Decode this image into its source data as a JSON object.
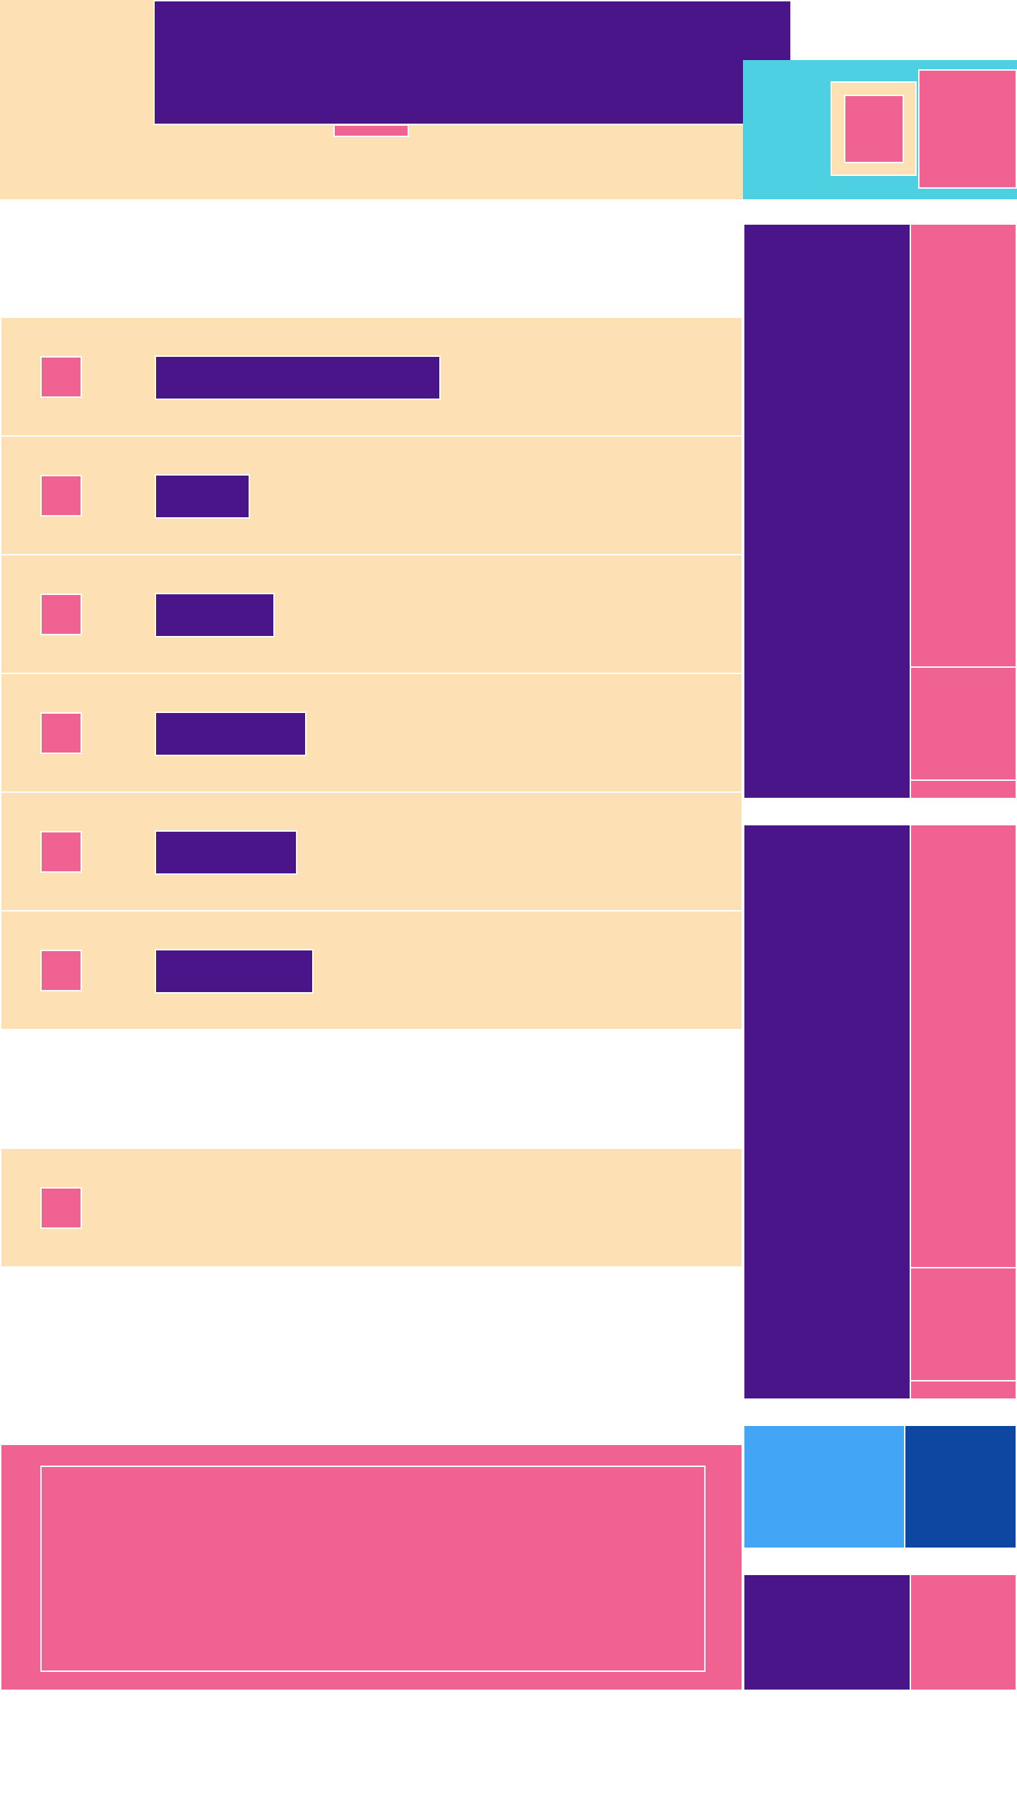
{
  "colors": {
    "peach": "#fde0b3",
    "purple": "#4b158a",
    "pink": "#f06292",
    "cyan": "#4dd0e1",
    "light_blue": "#42a5f5",
    "dark_blue": "#0d47a1",
    "divider": "#ffffff"
  },
  "header": {
    "title_bar": "",
    "tab_indicator": "",
    "profile_badge": "",
    "profile_icon": "checkbox-icon",
    "menu_panel": ""
  },
  "list": {
    "items": [
      {
        "icon": "checkbox-icon",
        "label": ""
      },
      {
        "icon": "checkbox-icon",
        "label": ""
      },
      {
        "icon": "checkbox-icon",
        "label": ""
      },
      {
        "icon": "checkbox-icon",
        "label": ""
      },
      {
        "icon": "checkbox-icon",
        "label": ""
      },
      {
        "icon": "checkbox-icon",
        "label": ""
      }
    ],
    "single_item": {
      "icon": "checkbox-icon",
      "label": ""
    }
  },
  "footer_card": {
    "content": ""
  },
  "side_panels": {
    "panel_1": {
      "nav": "",
      "main": "",
      "secondary": "",
      "tertiary": ""
    },
    "panel_2": {
      "nav": "",
      "main": "",
      "secondary": "",
      "tertiary": ""
    },
    "buttons": {
      "left": "",
      "right": ""
    },
    "bottom": {
      "left": "",
      "right": ""
    }
  }
}
